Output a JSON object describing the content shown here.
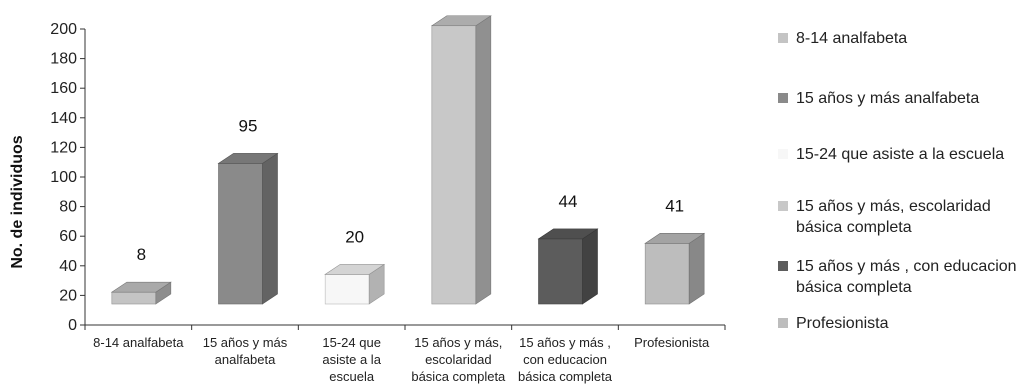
{
  "chart_data": {
    "type": "bar",
    "title": "",
    "xlabel": "",
    "ylabel": "No. de individuos",
    "ylim": [
      0,
      200
    ],
    "yticks": [
      0,
      20,
      40,
      60,
      80,
      100,
      120,
      140,
      160,
      180,
      200
    ],
    "categories": [
      "8-14 analfabeta",
      "15 años y más analfabeta",
      "15-24 que asiste a la escuela",
      "15 años y más, escolaridad básica completa",
      "15 años y más , con educacion básica completa",
      "Profesionista"
    ],
    "category_lines": [
      [
        "8-14 analfabeta"
      ],
      [
        "15 años y más",
        "analfabeta"
      ],
      [
        "15-24 que",
        "asiste a la",
        "escuela"
      ],
      [
        "15 años y más,",
        "escolaridad",
        "básica completa"
      ],
      [
        "15 años y más ,",
        "con educacion",
        "básica completa"
      ],
      [
        "Profesionista"
      ]
    ],
    "values": [
      8,
      95,
      20,
      188,
      44,
      41
    ],
    "colors": [
      "#c4c4c4",
      "#8a8a8a",
      "#f7f7f7",
      "#c8c8c8",
      "#5c5c5c",
      "#bdbdbd"
    ],
    "grid": false,
    "legend_position": "right",
    "legend": [
      {
        "label": "8-14 analfabeta",
        "color": "#c4c4c4"
      },
      {
        "label": "15 años y más analfabeta",
        "color": "#8a8a8a"
      },
      {
        "label": "15-24 que asiste a la escuela",
        "color": "#f7f7f7"
      },
      {
        "label": "15 años y más, escolaridad básica completa",
        "color": "#c8c8c8"
      },
      {
        "label": "15 años y más , con educacion básica completa",
        "color": "#5c5c5c"
      },
      {
        "label": "Profesionista",
        "color": "#bdbdbd"
      }
    ]
  }
}
